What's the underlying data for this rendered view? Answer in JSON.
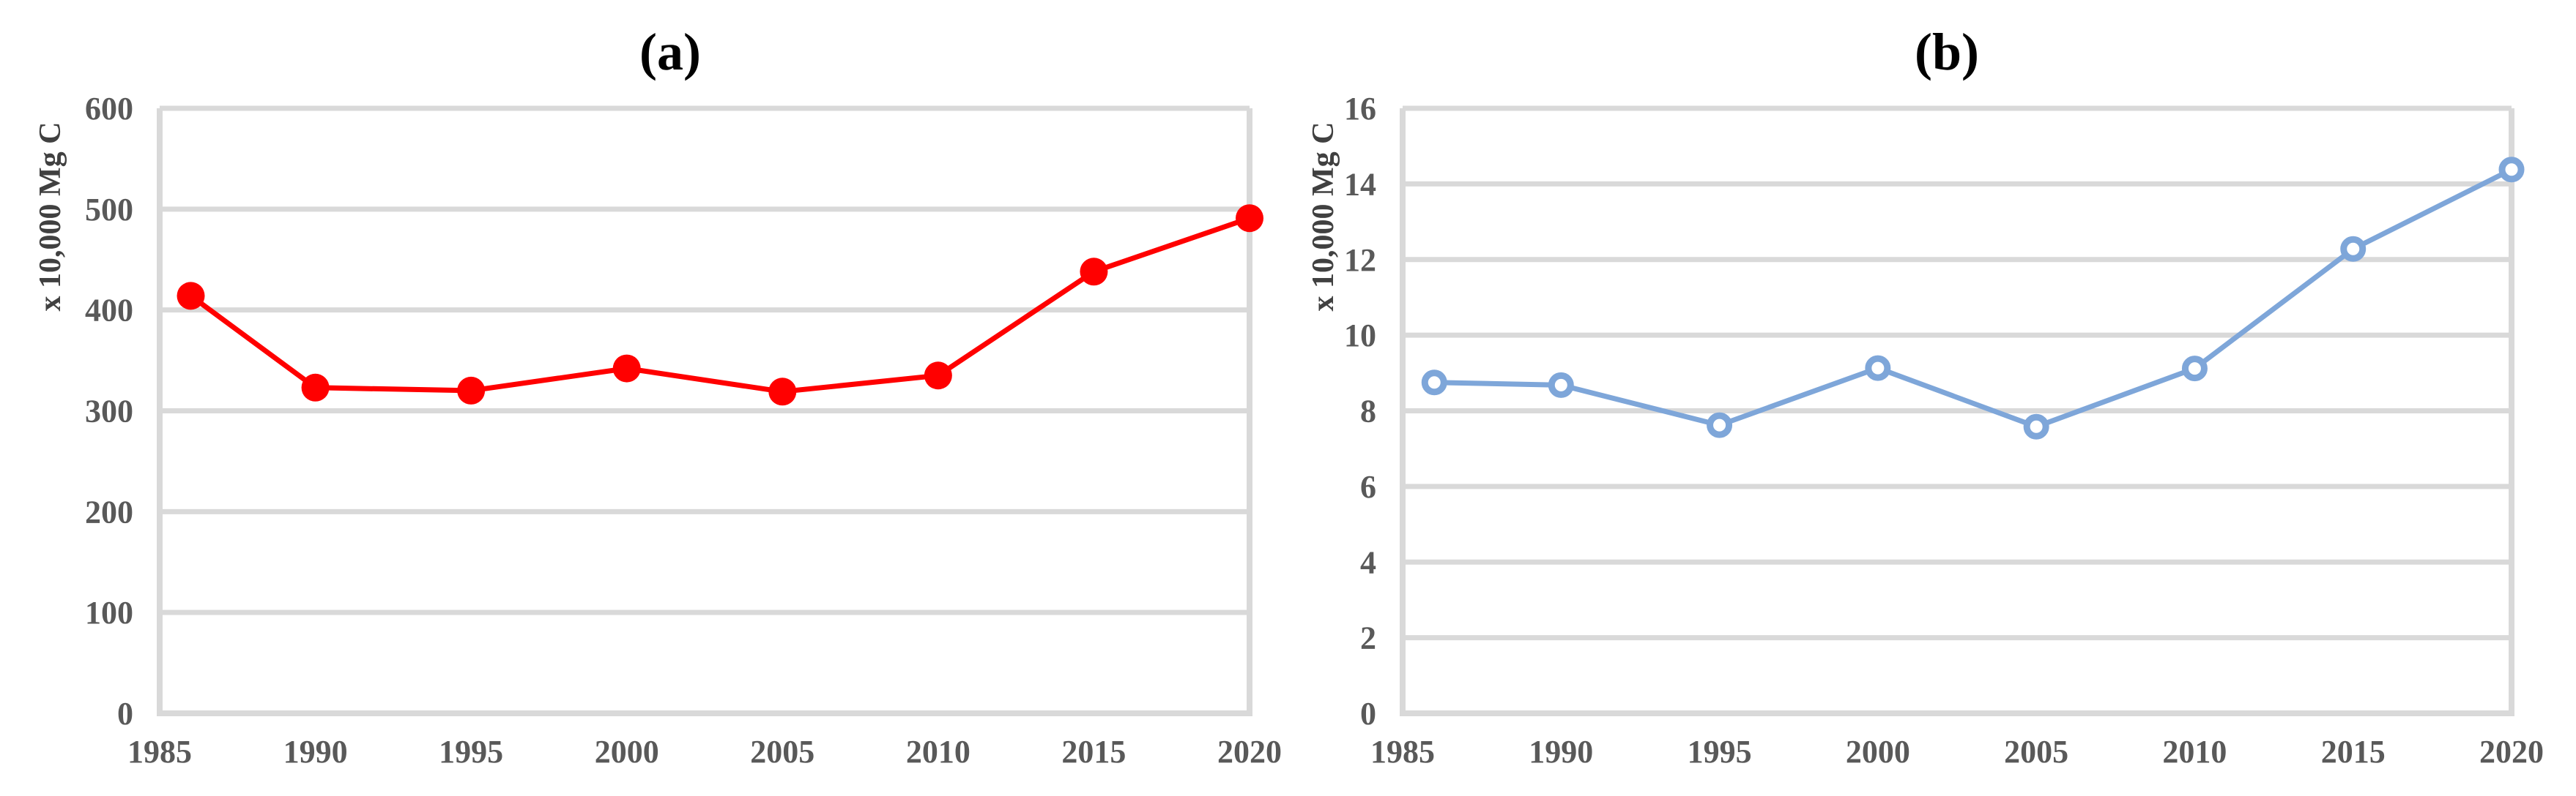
{
  "chart_data": [
    {
      "type": "line",
      "title": "(a)",
      "ylabel": "x 10,000 Mg C",
      "xlabel": "",
      "x": [
        1986,
        1990,
        1995,
        2000,
        2005,
        2010,
        2015,
        2020
      ],
      "xticks": [
        1985,
        1990,
        1995,
        2000,
        2005,
        2010,
        2015,
        2020
      ],
      "xlim": [
        1985,
        2020
      ],
      "ylim": [
        0,
        600
      ],
      "yticks": [
        0,
        100,
        200,
        300,
        400,
        500,
        600
      ],
      "grid": true,
      "legend": "none",
      "series": [
        {
          "color": "#ff0000",
          "marker": "filled-circle",
          "values": [
            414,
            323,
            320,
            342,
            319,
            335,
            438,
            491
          ]
        }
      ]
    },
    {
      "type": "line",
      "title": "(b)",
      "ylabel": "x 10,000 Mg C",
      "xlabel": "",
      "x": [
        1986,
        1990,
        1995,
        2000,
        2005,
        2010,
        2015,
        2020
      ],
      "xticks": [
        1985,
        1990,
        1995,
        2000,
        2005,
        2010,
        2015,
        2020
      ],
      "xlim": [
        1985,
        2020
      ],
      "ylim": [
        0,
        16
      ],
      "yticks": [
        0,
        2,
        4,
        6,
        8,
        10,
        12,
        14,
        16
      ],
      "grid": true,
      "legend": "none",
      "series": [
        {
          "color": "#7ea6d9",
          "marker": "open-circle",
          "values": [
            8.75,
            8.68,
            7.62,
            9.13,
            7.58,
            9.12,
            12.28,
            14.38
          ]
        }
      ]
    }
  ]
}
